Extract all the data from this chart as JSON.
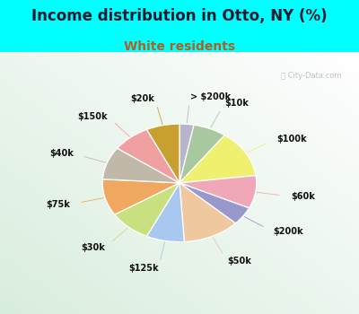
{
  "title": "Income distribution in Otto, NY (%)",
  "subtitle": "White residents",
  "bg_cyan": "#00ffff",
  "labels": [
    "> $200k",
    "$10k",
    "$100k",
    "$60k",
    "$200k",
    "$50k",
    "$125k",
    "$30k",
    "$75k",
    "$40k",
    "$150k",
    "$20k"
  ],
  "values": [
    3,
    7,
    13,
    9,
    5,
    12,
    8,
    9,
    10,
    9,
    8,
    7
  ],
  "colors": [
    "#b8b4cc",
    "#a8c8a0",
    "#f0f070",
    "#f0a8b8",
    "#9898cc",
    "#f0c8a0",
    "#a8c8f0",
    "#c8e080",
    "#f0a860",
    "#c0b8a8",
    "#f0a0a0",
    "#c8a030"
  ],
  "startangle": 90,
  "title_fontsize": 12,
  "subtitle_fontsize": 10,
  "label_fontsize": 7
}
